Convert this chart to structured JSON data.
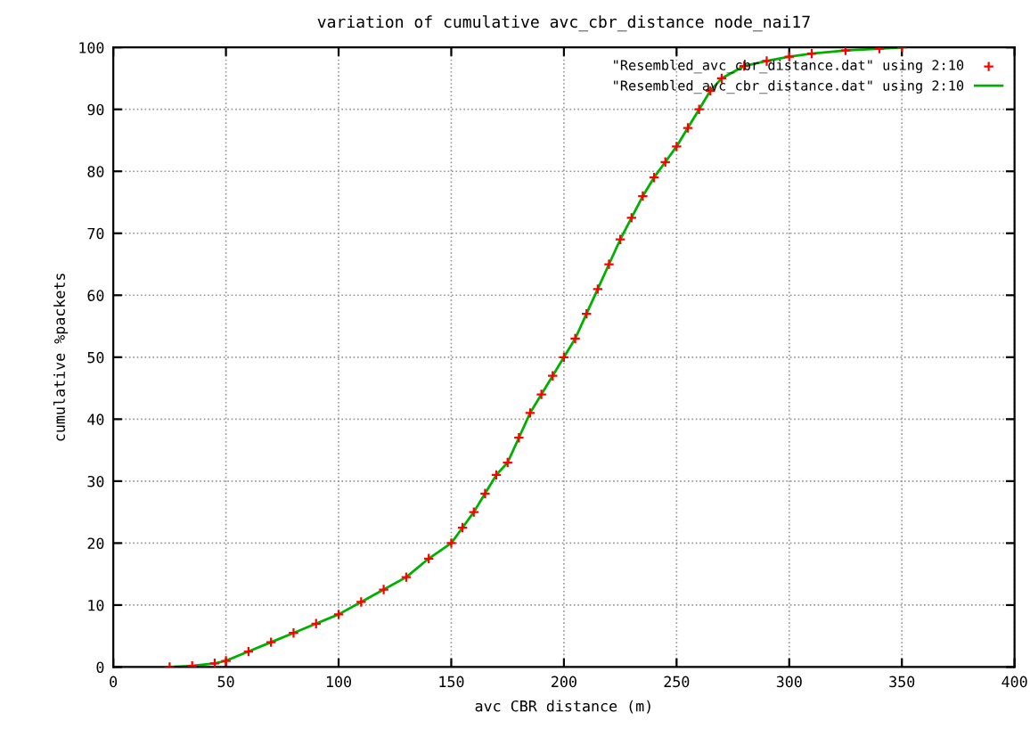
{
  "chart_data": {
    "type": "line",
    "title": "variation of cumulative avc_cbr_distance node_nai17",
    "xlabel": "avc CBR distance (m)",
    "ylabel": "cumulative %packets",
    "xlim": [
      0,
      400
    ],
    "xticks": [
      0,
      50,
      100,
      150,
      200,
      250,
      300,
      350,
      400
    ],
    "ylim": [
      0,
      100
    ],
    "yticks": [
      0,
      10,
      20,
      30,
      40,
      50,
      60,
      70,
      80,
      90,
      100
    ],
    "grid": true,
    "legend": "top right",
    "series": [
      {
        "name": "\"Resembled_avc_cbr_distance.dat\" using 2:10",
        "type": "scatter",
        "marker": "cross",
        "color": "#ff0000",
        "x": [
          25,
          35,
          45,
          50,
          60,
          70,
          80,
          90,
          100,
          110,
          120,
          130,
          140,
          150,
          155,
          160,
          165,
          170,
          175,
          180,
          185,
          190,
          195,
          200,
          205,
          210,
          215,
          220,
          225,
          230,
          235,
          240,
          245,
          250,
          255,
          260,
          265,
          270,
          280,
          290,
          300,
          310,
          325,
          340,
          350
        ],
        "values": [
          0,
          0.2,
          0.6,
          1,
          2.5,
          4,
          5.5,
          7,
          8.5,
          10.5,
          12.5,
          14.5,
          17.5,
          20,
          22.5,
          25,
          28,
          31,
          33,
          37,
          41,
          44,
          47,
          50,
          53,
          57,
          61,
          65,
          69,
          72.5,
          76,
          79,
          81.5,
          84,
          87,
          90,
          93,
          95,
          97,
          97.8,
          98.5,
          99,
          99.5,
          99.8,
          100
        ]
      },
      {
        "name": "\"Resembled_avc_cbr_distance.dat\" using 2:10",
        "line_style": "solid",
        "color": "#00b000",
        "x": [
          25,
          35,
          45,
          50,
          60,
          70,
          80,
          90,
          100,
          110,
          120,
          130,
          140,
          150,
          155,
          160,
          165,
          170,
          175,
          180,
          185,
          190,
          195,
          200,
          205,
          210,
          215,
          220,
          225,
          230,
          235,
          240,
          245,
          250,
          255,
          260,
          265,
          270,
          280,
          290,
          300,
          310,
          325,
          340,
          350
        ],
        "values": [
          0,
          0.2,
          0.6,
          1,
          2.5,
          4,
          5.5,
          7,
          8.5,
          10.5,
          12.5,
          14.5,
          17.5,
          20,
          22.5,
          25,
          28,
          31,
          33,
          37,
          41,
          44,
          47,
          50,
          53,
          57,
          61,
          65,
          69,
          72.5,
          76,
          79,
          81.5,
          84,
          87,
          90,
          93,
          95,
          97,
          97.8,
          98.5,
          99,
          99.5,
          99.8,
          100
        ]
      }
    ]
  }
}
